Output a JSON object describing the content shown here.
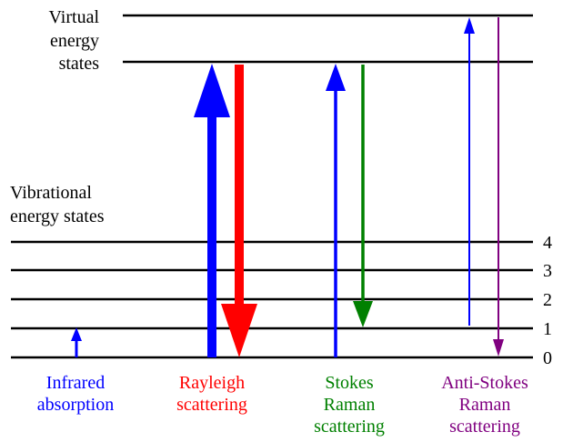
{
  "headings": {
    "virtual_lines": [
      "Virtual",
      "energy",
      "states"
    ],
    "vibrational_lines": [
      "Vibrational",
      "energy states"
    ]
  },
  "level_numbers": [
    "4",
    "3",
    "2",
    "1",
    "0"
  ],
  "processes": [
    {
      "lines": [
        "Infrared",
        "absorption"
      ],
      "color": "#0000ff"
    },
    {
      "lines": [
        "Rayleigh",
        "scattering"
      ],
      "color": "#ff0000"
    },
    {
      "lines": [
        "Stokes",
        "Raman",
        "scattering"
      ],
      "color": "#008000"
    },
    {
      "lines": [
        "Anti-Stokes",
        "Raman",
        "scattering"
      ],
      "color": "#800080"
    }
  ],
  "colors": {
    "lines": "#000000",
    "text": "#000000",
    "up_arrow": "#0000ff"
  }
}
